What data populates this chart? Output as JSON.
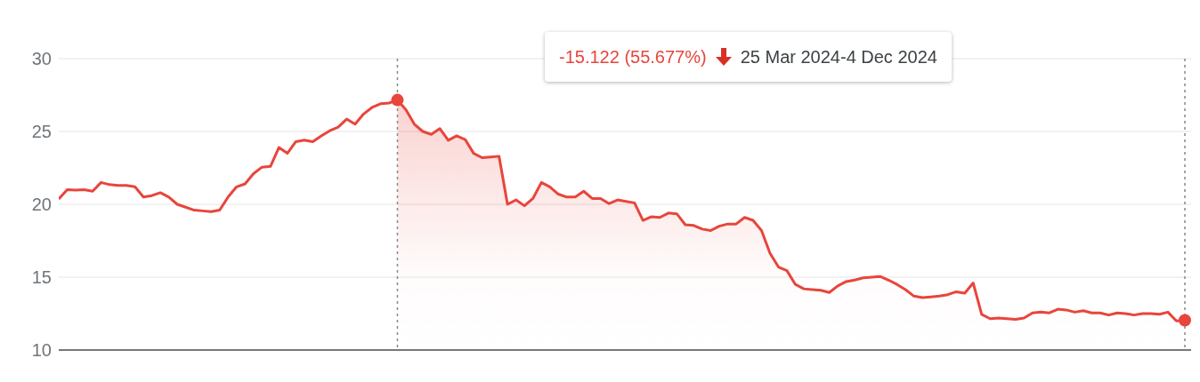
{
  "chart_data": {
    "type": "area",
    "categories": [
      null,
      null,
      null,
      null,
      null,
      null,
      null,
      null,
      null,
      null,
      null,
      null,
      null,
      null,
      null,
      null,
      null,
      null,
      null,
      null,
      null,
      null,
      null,
      null,
      null,
      null,
      null,
      null,
      null,
      null,
      null,
      null,
      null,
      null,
      null,
      null,
      null,
      null,
      null,
      null,
      null,
      null,
      null,
      null,
      null,
      null,
      null,
      null,
      null,
      null,
      null,
      null,
      null,
      null,
      null,
      null,
      null,
      null,
      null,
      null,
      null,
      null,
      null,
      null,
      null,
      null,
      null,
      null,
      null,
      null,
      null,
      null,
      null,
      null,
      null,
      null,
      null,
      null,
      null,
      null,
      null,
      null,
      null,
      null,
      null,
      null,
      null,
      null,
      null,
      null,
      null,
      null,
      null,
      null,
      null,
      null,
      null,
      null,
      null,
      null,
      null,
      null,
      null,
      null,
      null,
      null,
      null,
      null,
      null,
      null,
      null,
      null,
      null,
      null,
      null,
      null,
      null,
      null,
      null,
      null,
      null,
      null,
      null,
      null,
      null,
      null,
      null,
      null,
      null,
      null,
      null,
      null,
      null,
      null
    ],
    "series": [
      {
        "color": "#e8453c",
        "values": [
          20.37,
          21.0,
          20.97,
          21.0,
          20.9,
          21.5,
          21.35,
          21.3,
          21.3,
          21.2,
          20.5,
          20.6,
          20.8,
          20.5,
          20.0,
          19.8,
          19.6,
          19.55,
          19.5,
          19.6,
          20.5,
          21.2,
          21.4,
          22.1,
          22.55,
          22.6,
          23.9,
          23.5,
          24.3,
          24.4,
          24.3,
          24.7,
          25.05,
          25.3,
          25.85,
          25.5,
          26.2,
          26.65,
          26.9,
          26.95,
          27.16,
          26.5,
          25.5,
          25.0,
          24.8,
          25.2,
          24.4,
          24.7,
          24.45,
          23.5,
          23.2,
          23.25,
          23.3,
          20.0,
          20.3,
          19.9,
          20.4,
          21.5,
          21.2,
          20.7,
          20.5,
          20.5,
          20.9,
          20.4,
          20.4,
          20.05,
          20.3,
          20.2,
          20.1,
          18.9,
          19.15,
          19.1,
          19.4,
          19.35,
          18.6,
          18.55,
          18.3,
          18.2,
          18.5,
          18.65,
          18.65,
          19.1,
          18.9,
          18.2,
          16.65,
          15.7,
          15.45,
          14.5,
          14.2,
          14.15,
          14.1,
          13.95,
          14.4,
          14.7,
          14.8,
          14.95,
          15.0,
          15.05,
          14.8,
          14.5,
          14.15,
          13.7,
          13.6,
          13.65,
          13.7,
          13.8,
          14.0,
          13.9,
          14.6,
          12.45,
          12.15,
          12.2,
          12.15,
          12.1,
          12.2,
          12.55,
          12.6,
          12.55,
          12.8,
          12.75,
          12.6,
          12.7,
          12.55,
          12.55,
          12.4,
          12.55,
          12.5,
          12.4,
          12.5,
          12.5,
          12.45,
          12.6,
          12.0,
          12.04
        ]
      }
    ],
    "ylim": [
      10,
      30
    ],
    "yticks": [
      10,
      15,
      20,
      25,
      30
    ],
    "grid": "y",
    "annotations": [
      "-15.122 (55.677%)",
      "25 Mar 2024-4 Dec 2024"
    ]
  }
}
